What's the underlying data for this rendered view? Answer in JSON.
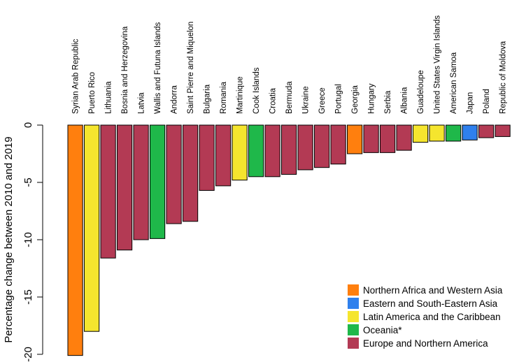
{
  "chart_data": {
    "type": "bar",
    "title": "",
    "xlabel": "",
    "ylabel": "Percentage change between 2010 and 2019",
    "ylim": [
      -20,
      0
    ],
    "yticks": [
      0,
      -5,
      -10,
      -15,
      -20
    ],
    "grid": false,
    "legend_position": "bottom-right",
    "categories": [
      "Syrian Arab Republic",
      "Puerto Rico",
      "Lithuania",
      "Bosnia and Herzegovina",
      "Latvia",
      "Wallis and Futuna Islands",
      "Andorra",
      "Saint Pierre and Miquelon",
      "Bulgaria",
      "Romania",
      "Martinique",
      "Cook Islands",
      "Croatia",
      "Bermuda",
      "Ukraine",
      "Greece",
      "Portugal",
      "Georgia",
      "Hungary",
      "Serbia",
      "Albania",
      "Guadeloupe",
      "United States Virgin Islands",
      "American Samoa",
      "Japan",
      "Poland",
      "Republic of Moldova"
    ],
    "values": [
      -20.1,
      -18.0,
      -11.6,
      -10.9,
      -10.0,
      -9.9,
      -8.6,
      -8.4,
      -5.7,
      -5.3,
      -4.8,
      -4.5,
      -4.5,
      -4.3,
      -3.9,
      -3.7,
      -3.4,
      -2.5,
      -2.4,
      -2.4,
      -2.2,
      -1.5,
      -1.4,
      -1.4,
      -1.3,
      -1.1,
      -1.0
    ],
    "regions": [
      "nawa",
      "lac",
      "ena",
      "ena",
      "ena",
      "oce",
      "ena",
      "ena",
      "ena",
      "ena",
      "lac",
      "oce",
      "ena",
      "ena",
      "ena",
      "ena",
      "ena",
      "nawa",
      "ena",
      "ena",
      "ena",
      "lac",
      "lac",
      "oce",
      "esea",
      "ena",
      "ena"
    ],
    "legend": [
      {
        "key": "nawa",
        "label": "Northern Africa and Western Asia",
        "color": "#FF7F0E"
      },
      {
        "key": "esea",
        "label": "Eastern and South-Eastern Asia",
        "color": "#2F80ED"
      },
      {
        "key": "lac",
        "label": "Latin America and the Caribbean",
        "color": "#F5E52E"
      },
      {
        "key": "oce",
        "label": "Oceania*",
        "color": "#1FB84A"
      },
      {
        "key": "ena",
        "label": "Europe and Northern America",
        "color": "#B33A54"
      }
    ]
  }
}
